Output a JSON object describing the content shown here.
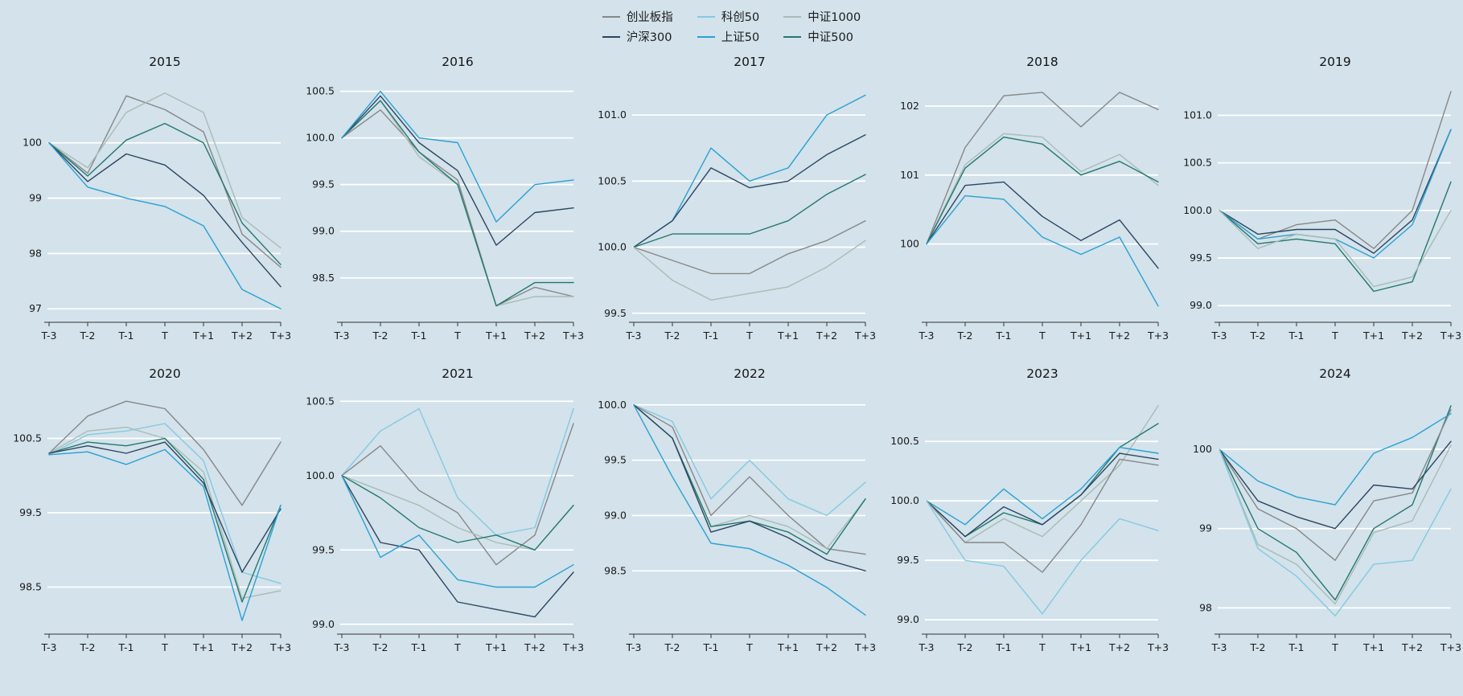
{
  "page": {
    "background_color": "#d3e2eb",
    "gridline_color": "#ffffff",
    "axis_color": "#333333",
    "text_color": "#1c1c1c"
  },
  "legend": {
    "items": [
      {
        "label": "创业板指",
        "color": "#878787"
      },
      {
        "label": "科创50",
        "color": "#85c9e2"
      },
      {
        "label": "中证1000",
        "color": "#a9bcb4"
      },
      {
        "label": "沪深300",
        "color": "#2b4660"
      },
      {
        "label": "上证50",
        "color": "#2aa0d2"
      },
      {
        "label": "中证500",
        "color": "#23786e"
      }
    ]
  },
  "chart_data": [
    {
      "type": "line",
      "title": "2015",
      "x_labels": [
        "T-3",
        "T-2",
        "T-1",
        "T",
        "T+1",
        "T+2",
        "T+3"
      ],
      "ylim": [
        96.8,
        101.1
      ],
      "yticks": [
        {
          "value": 100,
          "label": "100"
        },
        {
          "value": 99,
          "label": "99"
        },
        {
          "value": 98,
          "label": "98"
        },
        {
          "value": 97,
          "label": "97"
        }
      ],
      "series": [
        {
          "name": "创业板指",
          "values": [
            100,
            99.45,
            100.85,
            100.6,
            100.2,
            98.35,
            97.75
          ]
        },
        {
          "name": "中证1000",
          "values": [
            100,
            99.55,
            100.55,
            100.9,
            100.55,
            98.65,
            98.1
          ]
        },
        {
          "name": "中证500",
          "values": [
            100,
            99.4,
            100.05,
            100.35,
            100.0,
            98.55,
            97.8
          ]
        },
        {
          "name": "沪深300",
          "values": [
            100,
            99.3,
            99.8,
            99.6,
            99.05,
            98.2,
            97.4
          ]
        },
        {
          "name": "上证50",
          "values": [
            100,
            99.2,
            99.0,
            98.85,
            98.5,
            97.35,
            97.0
          ]
        }
      ]
    },
    {
      "type": "line",
      "title": "2016",
      "x_labels": [
        "T-3",
        "T-2",
        "T-1",
        "T",
        "T+1",
        "T+2",
        "T+3"
      ],
      "ylim": [
        98.05,
        100.6
      ],
      "yticks": [
        {
          "value": 100.5,
          "label": "100.5"
        },
        {
          "value": 100.0,
          "label": "100.0"
        },
        {
          "value": 99.5,
          "label": "99.5"
        },
        {
          "value": 99.0,
          "label": "99.0"
        },
        {
          "value": 98.5,
          "label": "98.5"
        }
      ],
      "series": [
        {
          "name": "创业板指",
          "values": [
            100,
            100.3,
            99.85,
            99.55,
            98.2,
            98.4,
            98.3
          ]
        },
        {
          "name": "中证1000",
          "values": [
            100,
            100.4,
            99.8,
            99.5,
            98.2,
            98.3,
            98.3
          ]
        },
        {
          "name": "中证500",
          "values": [
            100,
            100.4,
            99.85,
            99.5,
            98.2,
            98.45,
            98.45
          ]
        },
        {
          "name": "沪深300",
          "values": [
            100,
            100.45,
            99.95,
            99.65,
            98.85,
            99.2,
            99.25
          ]
        },
        {
          "name": "上证50",
          "values": [
            100,
            100.5,
            100.0,
            99.95,
            99.1,
            99.5,
            99.55
          ]
        }
      ]
    },
    {
      "type": "line",
      "title": "2017",
      "x_labels": [
        "T-3",
        "T-2",
        "T-1",
        "T",
        "T+1",
        "T+2",
        "T+3"
      ],
      "ylim": [
        99.45,
        101.25
      ],
      "yticks": [
        {
          "value": 101.0,
          "label": "101.0"
        },
        {
          "value": 100.5,
          "label": "100.5"
        },
        {
          "value": 100.0,
          "label": "100.0"
        },
        {
          "value": 99.5,
          "label": "99.5"
        }
      ],
      "series": [
        {
          "name": "上证50",
          "values": [
            100,
            100.2,
            100.75,
            100.5,
            100.6,
            101.0,
            101.15
          ]
        },
        {
          "name": "沪深300",
          "values": [
            100,
            100.2,
            100.6,
            100.45,
            100.5,
            100.7,
            100.85
          ]
        },
        {
          "name": "中证500",
          "values": [
            100,
            100.1,
            100.1,
            100.1,
            100.2,
            100.4,
            100.55
          ]
        },
        {
          "name": "创业板指",
          "values": [
            100,
            99.9,
            99.8,
            99.8,
            99.95,
            100.05,
            100.2
          ]
        },
        {
          "name": "中证1000",
          "values": [
            100,
            99.75,
            99.6,
            99.65,
            99.7,
            99.85,
            100.05
          ]
        }
      ]
    },
    {
      "type": "line",
      "title": "2018",
      "x_labels": [
        "T-3",
        "T-2",
        "T-1",
        "T",
        "T+1",
        "T+2",
        "T+3"
      ],
      "ylim": [
        98.9,
        102.35
      ],
      "yticks": [
        {
          "value": 102,
          "label": "102"
        },
        {
          "value": 101,
          "label": "101"
        },
        {
          "value": 100,
          "label": "100"
        }
      ],
      "series": [
        {
          "name": "创业板指",
          "values": [
            100,
            101.4,
            102.15,
            102.2,
            101.7,
            102.2,
            101.95
          ]
        },
        {
          "name": "中证1000",
          "values": [
            100,
            101.15,
            101.6,
            101.55,
            101.05,
            101.3,
            100.85
          ]
        },
        {
          "name": "中证500",
          "values": [
            100,
            101.1,
            101.55,
            101.45,
            101.0,
            101.2,
            100.9
          ]
        },
        {
          "name": "沪深300",
          "values": [
            100,
            100.85,
            100.9,
            100.4,
            100.05,
            100.35,
            99.65
          ]
        },
        {
          "name": "上证50",
          "values": [
            100,
            100.7,
            100.65,
            100.1,
            99.85,
            100.1,
            99.1
          ]
        }
      ]
    },
    {
      "type": "line",
      "title": "2019",
      "x_labels": [
        "T-3",
        "T-2",
        "T-1",
        "T",
        "T+1",
        "T+2",
        "T+3"
      ],
      "ylim": [
        98.85,
        101.35
      ],
      "yticks": [
        {
          "value": 101.0,
          "label": "101.0"
        },
        {
          "value": 100.5,
          "label": "100.5"
        },
        {
          "value": 100.0,
          "label": "100.0"
        },
        {
          "value": 99.5,
          "label": "99.5"
        },
        {
          "value": 99.0,
          "label": "99.0"
        }
      ],
      "series": [
        {
          "name": "创业板指",
          "values": [
            100,
            99.7,
            99.85,
            99.9,
            99.6,
            100.0,
            101.25
          ]
        },
        {
          "name": "沪深300",
          "values": [
            100,
            99.75,
            99.8,
            99.8,
            99.55,
            99.9,
            100.85
          ]
        },
        {
          "name": "上证50",
          "values": [
            100,
            99.7,
            99.75,
            99.7,
            99.5,
            99.85,
            100.85
          ]
        },
        {
          "name": "中证500",
          "values": [
            100,
            99.65,
            99.7,
            99.65,
            99.15,
            99.25,
            100.3
          ]
        },
        {
          "name": "中证1000",
          "values": [
            100,
            99.6,
            99.75,
            99.7,
            99.2,
            99.3,
            100.0
          ]
        }
      ]
    },
    {
      "type": "line",
      "title": "2020",
      "x_labels": [
        "T-3",
        "T-2",
        "T-1",
        "T",
        "T+1",
        "T+2",
        "T+3"
      ],
      "ylim": [
        97.9,
        101.1
      ],
      "yticks": [
        {
          "value": 100.5,
          "label": "100.5"
        },
        {
          "value": 99.5,
          "label": "99.5"
        },
        {
          "value": 98.5,
          "label": "98.5"
        }
      ],
      "series": [
        {
          "name": "创业板指",
          "values": [
            100.3,
            100.8,
            101.0,
            100.9,
            100.35,
            99.6,
            100.45
          ]
        },
        {
          "name": "科创50",
          "values": [
            100.28,
            100.55,
            100.6,
            100.7,
            100.2,
            98.7,
            98.55
          ]
        },
        {
          "name": "中证1000",
          "values": [
            100.3,
            100.6,
            100.65,
            100.5,
            100.05,
            98.35,
            98.45
          ]
        },
        {
          "name": "中证500",
          "values": [
            100.3,
            100.45,
            100.4,
            100.5,
            99.95,
            98.3,
            99.6
          ]
        },
        {
          "name": "沪深300",
          "values": [
            100.3,
            100.4,
            100.3,
            100.45,
            99.9,
            98.7,
            99.55
          ]
        },
        {
          "name": "上证50",
          "values": [
            100.28,
            100.32,
            100.15,
            100.35,
            99.85,
            98.05,
            99.6
          ]
        }
      ]
    },
    {
      "type": "line",
      "title": "2021",
      "x_labels": [
        "T-3",
        "T-2",
        "T-1",
        "T",
        "T+1",
        "T+2",
        "T+3"
      ],
      "ylim": [
        98.95,
        100.55
      ],
      "yticks": [
        {
          "value": 100.5,
          "label": "100.5"
        },
        {
          "value": 100.0,
          "label": "100.0"
        },
        {
          "value": 99.5,
          "label": "99.5"
        },
        {
          "value": 99.0,
          "label": "99.0"
        }
      ],
      "series": [
        {
          "name": "科创50",
          "values": [
            100,
            100.3,
            100.45,
            99.85,
            99.6,
            99.65,
            100.45
          ]
        },
        {
          "name": "创业板指",
          "values": [
            100,
            100.2,
            99.9,
            99.75,
            99.4,
            99.6,
            100.35
          ]
        },
        {
          "name": "中证1000",
          "values": [
            100,
            99.9,
            99.8,
            99.65,
            99.55,
            99.5,
            99.8
          ]
        },
        {
          "name": "中证500",
          "values": [
            100,
            99.85,
            99.65,
            99.55,
            99.6,
            99.5,
            99.8
          ]
        },
        {
          "name": "沪深300",
          "values": [
            100,
            99.55,
            99.5,
            99.15,
            99.1,
            99.05,
            99.35
          ]
        },
        {
          "name": "上证50",
          "values": [
            100,
            99.45,
            99.6,
            99.3,
            99.25,
            99.25,
            99.4
          ]
        }
      ]
    },
    {
      "type": "line",
      "title": "2022",
      "x_labels": [
        "T-3",
        "T-2",
        "T-1",
        "T",
        "T+1",
        "T+2",
        "T+3"
      ],
      "ylim": [
        97.95,
        100.1
      ],
      "yticks": [
        {
          "value": 100.0,
          "label": "100.0"
        },
        {
          "value": 99.5,
          "label": "99.5"
        },
        {
          "value": 99.0,
          "label": "99.0"
        },
        {
          "value": 98.5,
          "label": "98.5"
        }
      ],
      "series": [
        {
          "name": "科创50",
          "values": [
            100,
            99.85,
            99.15,
            99.5,
            99.15,
            99.0,
            99.3
          ]
        },
        {
          "name": "创业板指",
          "values": [
            100,
            99.8,
            99.0,
            99.35,
            99.0,
            98.7,
            98.65
          ]
        },
        {
          "name": "中证1000",
          "values": [
            100,
            99.7,
            98.9,
            99.0,
            98.9,
            98.7,
            99.15
          ]
        },
        {
          "name": "中证500",
          "values": [
            100,
            99.7,
            98.9,
            98.95,
            98.85,
            98.65,
            99.15
          ]
        },
        {
          "name": "沪深300",
          "values": [
            100,
            99.7,
            98.85,
            98.95,
            98.8,
            98.6,
            98.5
          ]
        },
        {
          "name": "上证50",
          "values": [
            100,
            99.35,
            98.75,
            98.7,
            98.55,
            98.35,
            98.1
          ]
        }
      ]
    },
    {
      "type": "line",
      "title": "2023",
      "x_labels": [
        "T-3",
        "T-2",
        "T-1",
        "T",
        "T+1",
        "T+2",
        "T+3"
      ],
      "ylim": [
        98.9,
        100.9
      ],
      "yticks": [
        {
          "value": 100.5,
          "label": "100.5"
        },
        {
          "value": 100.0,
          "label": "100.0"
        },
        {
          "value": 99.5,
          "label": "99.5"
        },
        {
          "value": 99.0,
          "label": "99.0"
        }
      ],
      "series": [
        {
          "name": "中证1000",
          "values": [
            100,
            99.65,
            99.85,
            99.7,
            100.0,
            100.3,
            100.8
          ]
        },
        {
          "name": "中证500",
          "values": [
            100,
            99.7,
            99.9,
            99.8,
            100.05,
            100.45,
            100.65
          ]
        },
        {
          "name": "上证50",
          "values": [
            100,
            99.8,
            100.1,
            99.85,
            100.1,
            100.45,
            100.4
          ]
        },
        {
          "name": "沪深300",
          "values": [
            100,
            99.7,
            99.95,
            99.8,
            100.05,
            100.4,
            100.35
          ]
        },
        {
          "name": "创业板指",
          "values": [
            100,
            99.65,
            99.65,
            99.4,
            99.8,
            100.35,
            100.3
          ]
        },
        {
          "name": "科创50",
          "values": [
            100,
            99.5,
            99.45,
            99.05,
            99.5,
            99.85,
            99.75
          ]
        }
      ]
    },
    {
      "type": "line",
      "title": "2024",
      "x_labels": [
        "T-3",
        "T-2",
        "T-1",
        "T",
        "T+1",
        "T+2",
        "T+3"
      ],
      "ylim": [
        97.7,
        100.7
      ],
      "yticks": [
        {
          "value": 100,
          "label": "100"
        },
        {
          "value": 99,
          "label": "99"
        },
        {
          "value": 98,
          "label": "98"
        }
      ],
      "series": [
        {
          "name": "中证500",
          "values": [
            100,
            99.0,
            98.7,
            98.1,
            99.0,
            99.3,
            100.55
          ]
        },
        {
          "name": "创业板指",
          "values": [
            100,
            99.25,
            99.0,
            98.6,
            99.35,
            99.45,
            100.5
          ]
        },
        {
          "name": "上证50",
          "values": [
            100,
            99.6,
            99.4,
            99.3,
            99.95,
            100.15,
            100.45
          ]
        },
        {
          "name": "沪深300",
          "values": [
            100,
            99.35,
            99.15,
            99.0,
            99.55,
            99.5,
            100.1
          ]
        },
        {
          "name": "中证1000",
          "values": [
            100,
            98.8,
            98.55,
            98.05,
            98.95,
            99.1,
            100.05
          ]
        },
        {
          "name": "科创50",
          "values": [
            100,
            98.75,
            98.4,
            97.9,
            98.55,
            98.6,
            99.5
          ]
        }
      ]
    }
  ]
}
